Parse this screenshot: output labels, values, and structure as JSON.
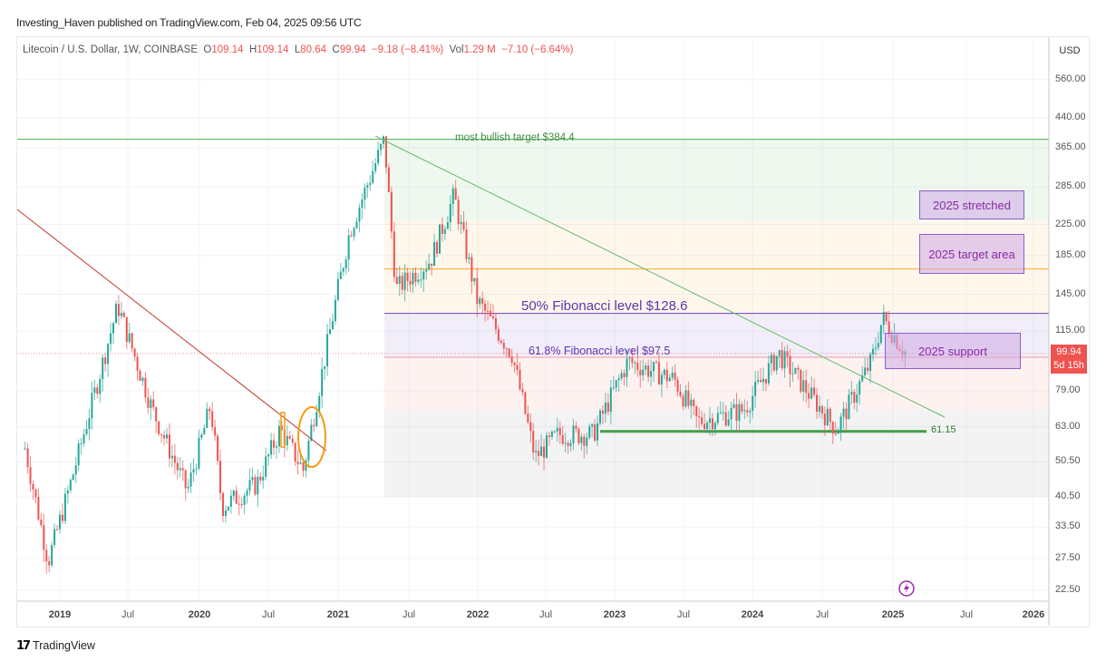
{
  "header": {
    "published": "Investing_Haven published on TradingView.com, Feb 04, 2025 09:56 UTC"
  },
  "legend": {
    "symbol": "Litecoin / U.S. Dollar, 1W, COINBASE",
    "open_label": "O",
    "open": "109.14",
    "high_label": "H",
    "high": "109.14",
    "low_label": "L",
    "low": "80.64",
    "close_label": "C",
    "close": "99.94",
    "change": "−9.18 (−8.41%)",
    "vol_label": "Vol",
    "vol": "1.29 M",
    "vol_change": "−7.10 (−6.64%)"
  },
  "price_axis": {
    "currency": "USD",
    "ticks": [
      "560.00",
      "440.00",
      "365.00",
      "285.00",
      "225.00",
      "185.00",
      "145.00",
      "115.00",
      "79.00",
      "63.00",
      "50.50",
      "40.50",
      "33.50",
      "27.50",
      "22.50"
    ],
    "last_price": "99.94",
    "countdown": "5d 15h"
  },
  "time_axis": {
    "ticks": [
      "2019",
      "Jul",
      "2020",
      "Jul",
      "2021",
      "Jul",
      "2022",
      "Jul",
      "2023",
      "Jul",
      "2024",
      "Jul",
      "2025",
      "Jul",
      "2026"
    ]
  },
  "annotations": {
    "bullish_target": "most bullish target $384.4",
    "fib50": "50% Fibonacci level $128.6",
    "fib618": "61.8% Fibonacci level $97.5",
    "support_line": "61.15",
    "box_stretched": "2025 stretched",
    "box_target": "2025 target area",
    "box_support": "2025 support"
  },
  "footer": {
    "brand": "TradingView"
  },
  "colors": {
    "up": "#26a69a",
    "down": "#ef5350",
    "fib50": "#7e57c2",
    "target_line": "#ffa726",
    "bullish_line": "#4caf50",
    "support_line": "#43a047",
    "trend_red": "#c0392b",
    "trend_green": "#66bb6a",
    "circle": "#f39c12"
  },
  "chart_data": {
    "type": "candlestick",
    "title": "Litecoin / U.S. Dollar, 1W, COINBASE",
    "ylabel": "USD",
    "yscale": "log",
    "ylim": [
      21,
      620
    ],
    "x_range": [
      "2018-10",
      "2026-02"
    ],
    "ohlc_latest": {
      "open": 109.14,
      "high": 109.14,
      "low": 80.64,
      "close": 99.94
    },
    "approx_close_path": [
      {
        "date": "2018-10",
        "price": 55
      },
      {
        "date": "2018-12",
        "price": 27
      },
      {
        "date": "2019-02",
        "price": 45
      },
      {
        "date": "2019-06",
        "price": 135
      },
      {
        "date": "2019-09",
        "price": 70
      },
      {
        "date": "2019-12",
        "price": 42
      },
      {
        "date": "2020-02",
        "price": 72
      },
      {
        "date": "2020-03",
        "price": 38
      },
      {
        "date": "2020-06",
        "price": 44
      },
      {
        "date": "2020-08",
        "price": 62
      },
      {
        "date": "2020-10",
        "price": 48
      },
      {
        "date": "2020-11",
        "price": 70
      },
      {
        "date": "2021-01",
        "price": 150
      },
      {
        "date": "2021-02",
        "price": 215
      },
      {
        "date": "2021-05",
        "price": 384
      },
      {
        "date": "2021-06",
        "price": 150
      },
      {
        "date": "2021-09",
        "price": 180
      },
      {
        "date": "2021-11",
        "price": 270
      },
      {
        "date": "2022-01",
        "price": 140
      },
      {
        "date": "2022-04",
        "price": 100
      },
      {
        "date": "2022-06",
        "price": 52
      },
      {
        "date": "2022-08",
        "price": 60
      },
      {
        "date": "2022-11",
        "price": 60
      },
      {
        "date": "2023-02",
        "price": 95
      },
      {
        "date": "2023-06",
        "price": 85
      },
      {
        "date": "2023-08",
        "price": 65
      },
      {
        "date": "2023-12",
        "price": 70
      },
      {
        "date": "2024-03",
        "price": 100
      },
      {
        "date": "2024-06",
        "price": 75
      },
      {
        "date": "2024-08",
        "price": 62
      },
      {
        "date": "2024-11",
        "price": 95
      },
      {
        "date": "2024-12",
        "price": 125
      },
      {
        "date": "2025-02",
        "price": 99.94
      }
    ],
    "horizontal_levels": [
      {
        "label": "most bullish target",
        "value": 384.4
      },
      {
        "label": "2025 target area line",
        "value": 170
      },
      {
        "label": "50% Fibonacci level",
        "value": 128.6
      },
      {
        "label": "61.8% Fibonacci level",
        "value": 97.5
      },
      {
        "label": "support",
        "value": 61.15
      }
    ],
    "zones": [
      {
        "name": "green zone",
        "from": 230,
        "to": 384.4
      },
      {
        "name": "orange zone",
        "from": 128.6,
        "to": 230
      },
      {
        "name": "purple zone",
        "from": 97.5,
        "to": 128.6
      },
      {
        "name": "pink zone",
        "from": 70,
        "to": 97.5
      },
      {
        "name": "gray zone",
        "from": 40.5,
        "to": 70
      }
    ],
    "boxes": [
      {
        "label": "2025 stretched",
        "from": 240,
        "to": 290
      },
      {
        "label": "2025 target area",
        "from": 162,
        "to": 195
      },
      {
        "label": "2025 support",
        "from": 92,
        "to": 112
      }
    ],
    "trendlines": [
      {
        "color": "red",
        "from": {
          "date": "2018-10",
          "price": 220
        },
        "to": {
          "date": "2020-11",
          "price": 55
        }
      },
      {
        "color": "green",
        "from": {
          "date": "2021-05",
          "price": 384
        },
        "to": {
          "date": "2025-06",
          "price": 70
        }
      }
    ],
    "grid": true,
    "legend_position": "top-left"
  }
}
